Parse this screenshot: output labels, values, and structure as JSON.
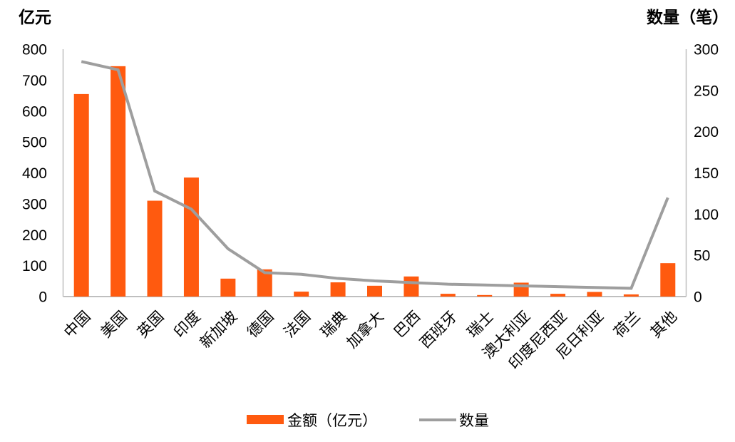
{
  "titles": {
    "left_axis": "亿元",
    "right_axis": "数量（笔）"
  },
  "legend": {
    "bar_label": "金额（亿元）",
    "line_label": "数量"
  },
  "colors": {
    "bar": "#FF5A0F",
    "line": "#9E9E9E",
    "axis": "#BFBFBF"
  },
  "chart_data": {
    "type": "bar",
    "subtype": "dual-axis-bar-line",
    "title": "",
    "categories": [
      "中国",
      "美国",
      "英国",
      "印度",
      "新加坡",
      "德国",
      "法国",
      "瑞典",
      "加拿大",
      "巴西",
      "西班牙",
      "瑞士",
      "澳大利亚",
      "印度尼西亚",
      "尼日利亚",
      "荷兰",
      "其他"
    ],
    "series": [
      {
        "name": "金额（亿元）",
        "type": "bar",
        "axis": "left",
        "color": "#FF5A0F",
        "values": [
          655,
          745,
          310,
          385,
          58,
          88,
          16,
          46,
          35,
          65,
          9,
          5,
          45,
          9,
          15,
          7,
          108
        ]
      },
      {
        "name": "数量",
        "type": "line",
        "axis": "right",
        "color": "#9E9E9E",
        "values": [
          285,
          275,
          128,
          106,
          58,
          29,
          27,
          22,
          19,
          17,
          15,
          14,
          13,
          12,
          11,
          10,
          120
        ]
      }
    ],
    "left_axis": {
      "title": "亿元",
      "min": 0,
      "max": 800,
      "tick_step": 100,
      "ticks": [
        800,
        700,
        600,
        500,
        400,
        300,
        200,
        100,
        0
      ]
    },
    "right_axis": {
      "title": "数量（笔）",
      "min": 0,
      "max": 300,
      "tick_step": 50,
      "ticks": [
        300,
        250,
        200,
        150,
        100,
        50,
        0
      ]
    },
    "grid": false,
    "legend_position": "bottom",
    "x_label_rotation": -45
  }
}
